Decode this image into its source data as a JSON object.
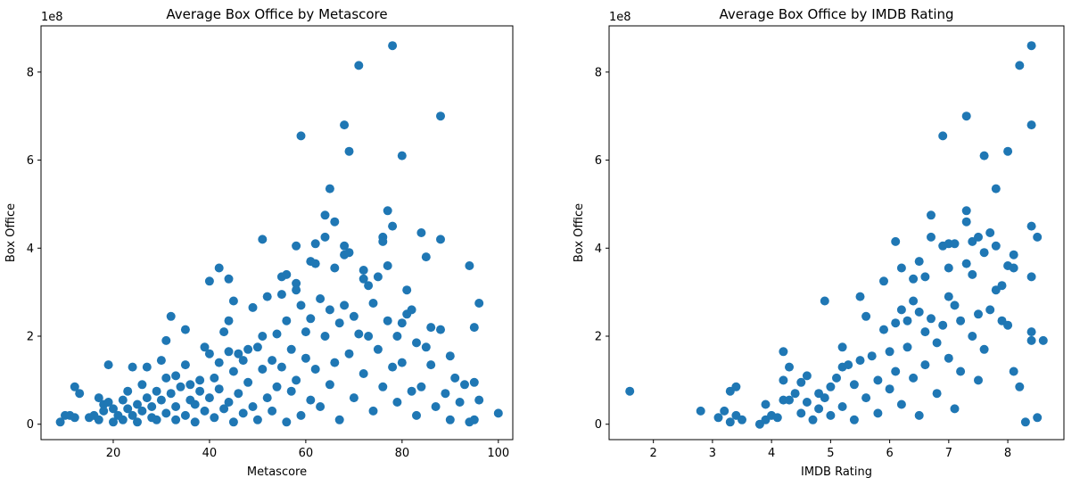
{
  "chart_data": [
    {
      "type": "scatter",
      "title": "Average Box Office by Metascore",
      "xlabel": "Metascore",
      "ylabel": "Box Office",
      "y_offset_text": "1e8",
      "xlim": [
        5,
        103
      ],
      "ylim": [
        -0.35,
        9.05
      ],
      "xticks": [
        20,
        40,
        60,
        80,
        100
      ],
      "yticks": [
        0,
        2,
        4,
        6,
        8
      ],
      "y_unit_note": "y values in units of 1e8",
      "color": "#1f77b4",
      "points": [
        [
          9,
          0.05
        ],
        [
          10,
          0.2
        ],
        [
          11,
          0.2
        ],
        [
          12,
          0.85
        ],
        [
          13,
          0.7
        ],
        [
          12,
          0.15
        ],
        [
          15,
          0.15
        ],
        [
          16,
          0.2
        ],
        [
          17,
          0.6
        ],
        [
          17,
          0.1
        ],
        [
          18,
          0.45
        ],
        [
          18,
          0.3
        ],
        [
          19,
          0.5
        ],
        [
          19,
          1.35
        ],
        [
          20,
          0.05
        ],
        [
          20,
          0.35
        ],
        [
          21,
          0.2
        ],
        [
          22,
          0.55
        ],
        [
          22,
          0.1
        ],
        [
          23,
          0.35
        ],
        [
          23,
          0.75
        ],
        [
          24,
          1.3
        ],
        [
          24,
          0.2
        ],
        [
          25,
          0.45
        ],
        [
          25,
          0.05
        ],
        [
          26,
          0.9
        ],
        [
          26,
          0.3
        ],
        [
          27,
          1.3
        ],
        [
          27,
          0.6
        ],
        [
          28,
          0.15
        ],
        [
          28,
          0.4
        ],
        [
          29,
          0.75
        ],
        [
          29,
          0.1
        ],
        [
          30,
          1.45
        ],
        [
          30,
          0.55
        ],
        [
          31,
          1.9
        ],
        [
          31,
          0.25
        ],
        [
          31,
          1.05
        ],
        [
          32,
          2.45
        ],
        [
          32,
          0.7
        ],
        [
          33,
          0.1
        ],
        [
          33,
          1.1
        ],
        [
          33,
          0.4
        ],
        [
          34,
          0.85
        ],
        [
          35,
          2.15
        ],
        [
          35,
          1.35
        ],
        [
          35,
          0.2
        ],
        [
          36,
          0.55
        ],
        [
          36,
          0.9
        ],
        [
          37,
          0.05
        ],
        [
          37,
          0.45
        ],
        [
          38,
          0.75
        ],
        [
          38,
          1.0
        ],
        [
          39,
          1.75
        ],
        [
          39,
          0.3
        ],
        [
          40,
          3.25
        ],
        [
          40,
          1.6
        ],
        [
          40,
          0.6
        ],
        [
          41,
          1.05
        ],
        [
          41,
          0.15
        ],
        [
          42,
          3.55
        ],
        [
          42,
          1.4
        ],
        [
          42,
          0.8
        ],
        [
          43,
          2.1
        ],
        [
          43,
          0.35
        ],
        [
          44,
          3.3
        ],
        [
          44,
          2.35
        ],
        [
          44,
          1.65
        ],
        [
          44,
          0.5
        ],
        [
          45,
          2.8
        ],
        [
          45,
          1.2
        ],
        [
          45,
          0.05
        ],
        [
          46,
          1.6
        ],
        [
          46,
          0.7
        ],
        [
          47,
          1.45
        ],
        [
          47,
          0.25
        ],
        [
          48,
          1.7
        ],
        [
          48,
          0.95
        ],
        [
          49,
          2.65
        ],
        [
          49,
          0.4
        ],
        [
          50,
          1.75
        ],
        [
          50,
          0.1
        ],
        [
          51,
          4.2
        ],
        [
          51,
          2.0
        ],
        [
          51,
          1.25
        ],
        [
          52,
          2.9
        ],
        [
          52,
          0.6
        ],
        [
          53,
          1.45
        ],
        [
          53,
          0.3
        ],
        [
          54,
          2.05
        ],
        [
          54,
          0.85
        ],
        [
          55,
          3.35
        ],
        [
          55,
          2.95
        ],
        [
          55,
          1.3
        ],
        [
          56,
          3.4
        ],
        [
          56,
          2.35
        ],
        [
          56,
          0.05
        ],
        [
          57,
          1.7
        ],
        [
          57,
          0.75
        ],
        [
          58,
          4.05
        ],
        [
          58,
          3.2
        ],
        [
          58,
          3.05
        ],
        [
          58,
          1.0
        ],
        [
          59,
          6.55
        ],
        [
          59,
          2.7
        ],
        [
          59,
          0.2
        ],
        [
          60,
          2.1
        ],
        [
          60,
          1.5
        ],
        [
          61,
          3.7
        ],
        [
          61,
          2.4
        ],
        [
          61,
          0.55
        ],
        [
          62,
          4.1
        ],
        [
          62,
          3.65
        ],
        [
          62,
          1.25
        ],
        [
          63,
          2.85
        ],
        [
          63,
          0.4
        ],
        [
          64,
          4.75
        ],
        [
          64,
          4.25
        ],
        [
          64,
          2.0
        ],
        [
          65,
          5.35
        ],
        [
          65,
          2.6
        ],
        [
          65,
          0.9
        ],
        [
          66,
          4.6
        ],
        [
          66,
          3.55
        ],
        [
          66,
          1.4
        ],
        [
          67,
          2.3
        ],
        [
          67,
          0.1
        ],
        [
          68,
          6.8
        ],
        [
          68,
          4.05
        ],
        [
          68,
          3.85
        ],
        [
          68,
          2.7
        ],
        [
          69,
          6.2
        ],
        [
          69,
          3.9
        ],
        [
          69,
          1.6
        ],
        [
          70,
          2.45
        ],
        [
          70,
          0.6
        ],
        [
          71,
          8.15
        ],
        [
          71,
          2.05
        ],
        [
          72,
          3.5
        ],
        [
          72,
          3.3
        ],
        [
          72,
          1.15
        ],
        [
          73,
          3.15
        ],
        [
          73,
          2.0
        ],
        [
          74,
          2.75
        ],
        [
          74,
          0.3
        ],
        [
          75,
          3.35
        ],
        [
          75,
          1.7
        ],
        [
          76,
          4.25
        ],
        [
          76,
          4.15
        ],
        [
          76,
          0.85
        ],
        [
          77,
          4.85
        ],
        [
          77,
          3.6
        ],
        [
          77,
          2.35
        ],
        [
          78,
          8.6
        ],
        [
          78,
          4.5
        ],
        [
          78,
          1.3
        ],
        [
          79,
          2.0
        ],
        [
          79,
          0.5
        ],
        [
          80,
          6.1
        ],
        [
          80,
          2.3
        ],
        [
          80,
          1.4
        ],
        [
          81,
          3.05
        ],
        [
          81,
          2.5
        ],
        [
          82,
          2.6
        ],
        [
          82,
          0.75
        ],
        [
          83,
          1.85
        ],
        [
          83,
          0.2
        ],
        [
          84,
          4.35
        ],
        [
          84,
          0.85
        ],
        [
          85,
          3.8
        ],
        [
          85,
          1.75
        ],
        [
          86,
          2.2
        ],
        [
          86,
          1.35
        ],
        [
          87,
          0.4
        ],
        [
          88,
          7.0
        ],
        [
          88,
          4.2
        ],
        [
          88,
          2.15
        ],
        [
          89,
          0.7
        ],
        [
          90,
          1.55
        ],
        [
          90,
          0.1
        ],
        [
          91,
          1.05
        ],
        [
          92,
          0.5
        ],
        [
          93,
          0.9
        ],
        [
          94,
          3.6
        ],
        [
          94,
          0.05
        ],
        [
          95,
          2.2
        ],
        [
          95,
          0.95
        ],
        [
          95,
          0.1
        ],
        [
          96,
          2.75
        ],
        [
          96,
          0.55
        ],
        [
          100,
          0.25
        ]
      ]
    },
    {
      "type": "scatter",
      "title": "Average Box Office by IMDB Rating",
      "xlabel": "IMDB Rating",
      "ylabel": "Box Office",
      "y_offset_text": "1e8",
      "xlim": [
        1.25,
        8.95
      ],
      "ylim": [
        -0.35,
        9.05
      ],
      "xticks": [
        2,
        3,
        4,
        5,
        6,
        7,
        8
      ],
      "yticks": [
        0,
        2,
        4,
        6,
        8
      ],
      "y_unit_note": "y values in units of 1e8",
      "color": "#1f77b4",
      "points": [
        [
          1.6,
          0.75
        ],
        [
          2.8,
          0.3
        ],
        [
          3.1,
          0.15
        ],
        [
          3.2,
          0.3
        ],
        [
          3.3,
          0.05
        ],
        [
          3.3,
          0.75
        ],
        [
          3.4,
          0.85
        ],
        [
          3.4,
          0.2
        ],
        [
          3.5,
          0.1
        ],
        [
          3.8,
          0.0
        ],
        [
          3.9,
          0.1
        ],
        [
          3.9,
          0.45
        ],
        [
          4.0,
          0.2
        ],
        [
          4.1,
          0.15
        ],
        [
          4.2,
          0.55
        ],
        [
          4.2,
          1.65
        ],
        [
          4.2,
          1.0
        ],
        [
          4.3,
          1.3
        ],
        [
          4.3,
          0.55
        ],
        [
          4.4,
          0.7
        ],
        [
          4.5,
          0.25
        ],
        [
          4.5,
          0.95
        ],
        [
          4.6,
          1.1
        ],
        [
          4.6,
          0.5
        ],
        [
          4.7,
          0.1
        ],
        [
          4.8,
          0.35
        ],
        [
          4.8,
          0.7
        ],
        [
          4.9,
          0.6
        ],
        [
          4.9,
          2.8
        ],
        [
          5.0,
          0.2
        ],
        [
          5.0,
          0.85
        ],
        [
          5.1,
          1.05
        ],
        [
          5.2,
          1.75
        ],
        [
          5.2,
          1.3
        ],
        [
          5.2,
          0.4
        ],
        [
          5.3,
          1.35
        ],
        [
          5.4,
          0.9
        ],
        [
          5.4,
          0.1
        ],
        [
          5.5,
          2.9
        ],
        [
          5.5,
          1.45
        ],
        [
          5.6,
          2.45
        ],
        [
          5.6,
          0.6
        ],
        [
          5.7,
          1.55
        ],
        [
          5.8,
          1.0
        ],
        [
          5.8,
          0.25
        ],
        [
          5.9,
          3.25
        ],
        [
          5.9,
          2.15
        ],
        [
          6.0,
          1.65
        ],
        [
          6.0,
          0.8
        ],
        [
          6.1,
          4.15
        ],
        [
          6.1,
          2.3
        ],
        [
          6.1,
          1.2
        ],
        [
          6.2,
          3.55
        ],
        [
          6.2,
          2.6
        ],
        [
          6.2,
          0.45
        ],
        [
          6.3,
          2.35
        ],
        [
          6.3,
          1.75
        ],
        [
          6.4,
          3.3
        ],
        [
          6.4,
          2.8
        ],
        [
          6.4,
          1.05
        ],
        [
          6.5,
          3.7
        ],
        [
          6.5,
          2.55
        ],
        [
          6.5,
          0.2
        ],
        [
          6.6,
          3.35
        ],
        [
          6.6,
          2.1
        ],
        [
          6.6,
          1.35
        ],
        [
          6.7,
          4.75
        ],
        [
          6.7,
          4.25
        ],
        [
          6.7,
          2.4
        ],
        [
          6.8,
          1.85
        ],
        [
          6.8,
          0.7
        ],
        [
          6.9,
          6.55
        ],
        [
          6.9,
          4.05
        ],
        [
          6.9,
          2.25
        ],
        [
          7.0,
          4.1
        ],
        [
          7.0,
          3.55
        ],
        [
          7.0,
          2.9
        ],
        [
          7.0,
          1.5
        ],
        [
          7.1,
          4.1
        ],
        [
          7.1,
          2.7
        ],
        [
          7.1,
          0.35
        ],
        [
          7.2,
          2.35
        ],
        [
          7.2,
          1.2
        ],
        [
          7.3,
          7.0
        ],
        [
          7.3,
          4.85
        ],
        [
          7.3,
          4.6
        ],
        [
          7.3,
          3.65
        ],
        [
          7.4,
          4.15
        ],
        [
          7.4,
          3.4
        ],
        [
          7.4,
          2.0
        ],
        [
          7.5,
          4.25
        ],
        [
          7.5,
          2.5
        ],
        [
          7.5,
          1.0
        ],
        [
          7.6,
          6.1
        ],
        [
          7.6,
          3.9
        ],
        [
          7.6,
          1.7
        ],
        [
          7.7,
          4.35
        ],
        [
          7.7,
          2.6
        ],
        [
          7.8,
          5.35
        ],
        [
          7.8,
          4.05
        ],
        [
          7.8,
          3.05
        ],
        [
          7.9,
          3.15
        ],
        [
          7.9,
          2.35
        ],
        [
          8.0,
          6.2
        ],
        [
          8.0,
          3.6
        ],
        [
          8.0,
          2.25
        ],
        [
          8.1,
          3.85
        ],
        [
          8.1,
          3.55
        ],
        [
          8.1,
          1.2
        ],
        [
          8.2,
          8.15
        ],
        [
          8.2,
          0.85
        ],
        [
          8.3,
          0.05
        ],
        [
          8.4,
          8.6
        ],
        [
          8.4,
          6.8
        ],
        [
          8.4,
          4.5
        ],
        [
          8.4,
          3.35
        ],
        [
          8.4,
          2.1
        ],
        [
          8.4,
          1.9
        ],
        [
          8.5,
          4.25
        ],
        [
          8.5,
          0.15
        ],
        [
          8.6,
          1.9
        ]
      ]
    }
  ]
}
